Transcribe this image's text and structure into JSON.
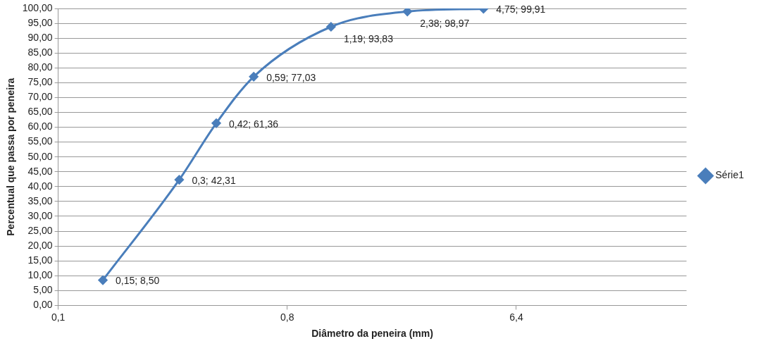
{
  "chart_data": {
    "type": "line",
    "xlabel": "Diâmetro da peneira (mm)",
    "ylabel": "Percentual que passa por peneira",
    "x": [
      0.15,
      0.3,
      0.42,
      0.59,
      1.19,
      2.38,
      4.75
    ],
    "series": [
      {
        "name": "Série1",
        "color": "#4a7ebb",
        "values": [
          8.5,
          42.31,
          61.36,
          77.03,
          93.83,
          98.97,
          99.91
        ],
        "value_labels": [
          "0,15; 8,50",
          "0,3; 42,31",
          "0,42; 61,36",
          "0,59; 77,03",
          "1,19; 93,83",
          "2,38; 98,97",
          "4,75; 99,91"
        ]
      }
    ],
    "log": "x",
    "xlim": [
      0.1,
      30
    ],
    "xticks": [
      {
        "value": 0.1,
        "label": "0,1"
      },
      {
        "value": 0.8,
        "label": "0,8"
      },
      {
        "value": 6.4,
        "label": "6,4"
      }
    ],
    "ylim": [
      0,
      100
    ],
    "yticks": [
      {
        "value": 0,
        "label": "0,00"
      },
      {
        "value": 5,
        "label": "5,00"
      },
      {
        "value": 10,
        "label": "10,00"
      },
      {
        "value": 15,
        "label": "15,00"
      },
      {
        "value": 20,
        "label": "20,00"
      },
      {
        "value": 25,
        "label": "25,00"
      },
      {
        "value": 30,
        "label": "30,00"
      },
      {
        "value": 35,
        "label": "35,00"
      },
      {
        "value": 40,
        "label": "40,00"
      },
      {
        "value": 45,
        "label": "45,00"
      },
      {
        "value": 50,
        "label": "50,00"
      },
      {
        "value": 55,
        "label": "55,00"
      },
      {
        "value": 60,
        "label": "60,00"
      },
      {
        "value": 65,
        "label": "65,00"
      },
      {
        "value": 70,
        "label": "70,00"
      },
      {
        "value": 75,
        "label": "75,00"
      },
      {
        "value": 80,
        "label": "80,00"
      },
      {
        "value": 85,
        "label": "85,00"
      },
      {
        "value": 90,
        "label": "90,00"
      },
      {
        "value": 95,
        "label": "95,00"
      },
      {
        "value": 100,
        "label": "100,00"
      }
    ],
    "grid": "y",
    "legend": "right",
    "marker": "diamond",
    "line_style": "solid"
  }
}
